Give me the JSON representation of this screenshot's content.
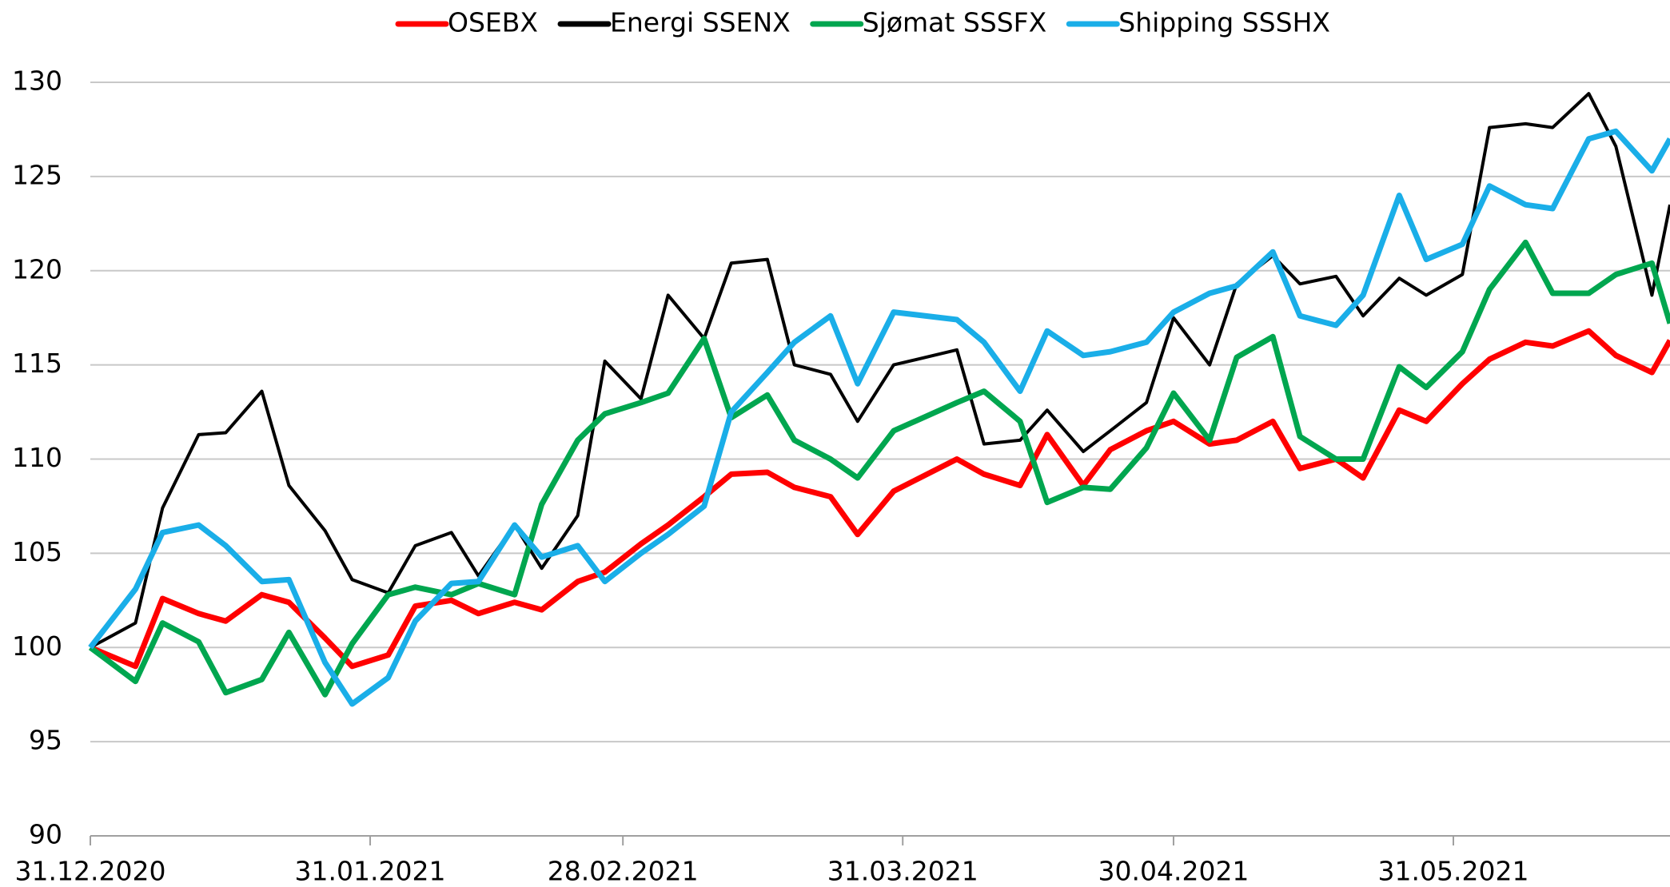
{
  "chart_data": {
    "type": "line",
    "x": [
      "31.12.2020",
      "05.01.2021",
      "08.01.2021",
      "12.01.2021",
      "15.01.2021",
      "19.01.2021",
      "22.01.2021",
      "26.01.2021",
      "29.01.2021",
      "02.02.2021",
      "05.02.2021",
      "09.02.2021",
      "12.02.2021",
      "16.02.2021",
      "19.02.2021",
      "23.02.2021",
      "26.02.2021",
      "02.03.2021",
      "05.03.2021",
      "09.03.2021",
      "12.03.2021",
      "16.03.2021",
      "19.03.2021",
      "23.03.2021",
      "26.03.2021",
      "30.03.2021",
      "06.04.2021",
      "09.04.2021",
      "13.04.2021",
      "16.04.2021",
      "20.04.2021",
      "23.04.2021",
      "27.04.2021",
      "30.04.2021",
      "04.05.2021",
      "07.05.2021",
      "11.05.2021",
      "14.05.2021",
      "18.05.2021",
      "21.05.2021",
      "25.05.2021",
      "28.05.2021",
      "01.06.2021",
      "04.06.2021",
      "08.06.2021",
      "11.06.2021",
      "15.06.2021",
      "18.06.2021",
      "22.06.2021",
      "24.06.2021"
    ],
    "series": [
      {
        "name": "OSEBX",
        "color": "#ff0000",
        "values": [
          100,
          99.0,
          102.6,
          101.8,
          101.4,
          102.8,
          102.4,
          100.5,
          99.0,
          99.6,
          102.2,
          102.5,
          101.8,
          102.4,
          102,
          103.5,
          104,
          105.5,
          106.5,
          108,
          109.2,
          109.3,
          108.5,
          108,
          106,
          108.3,
          110,
          109.2,
          108.6,
          111.3,
          108.6,
          110.5,
          111.5,
          112,
          110.8,
          111,
          112,
          109.5,
          110,
          109,
          112.6,
          112,
          114,
          115.3,
          116.2,
          116,
          116.8,
          115.5,
          114.6,
          116.3
        ]
      },
      {
        "name": "Energi SSENX",
        "color": "#000000",
        "values": [
          100,
          101.3,
          107.4,
          111.3,
          111.4,
          113.6,
          108.6,
          106.2,
          103.6,
          102.9,
          105.4,
          106.1,
          103.8,
          106.5,
          104.2,
          107,
          115.2,
          113.2,
          118.7,
          116.4,
          120.4,
          120.6,
          115,
          114.5,
          112,
          115,
          115.8,
          110.8,
          111,
          112.6,
          110.4,
          111.5,
          113,
          117.5,
          115,
          119.3,
          120.8,
          119.3,
          119.7,
          117.6,
          119.6,
          118.7,
          119.8,
          127.6,
          127.8,
          127.6,
          129.4,
          126.6,
          118.7,
          123.5
        ]
      },
      {
        "name": "Sjømat SSSFX",
        "color": "#00a64f",
        "values": [
          100,
          98.2,
          101.3,
          100.3,
          97.6,
          98.3,
          100.8,
          97.5,
          100.2,
          102.8,
          103.2,
          102.8,
          103.4,
          102.8,
          107.6,
          111,
          112.4,
          113,
          113.5,
          116.4,
          112.2,
          113.4,
          111,
          110,
          109,
          111.5,
          113,
          113.6,
          112,
          107.7,
          108.5,
          108.4,
          110.6,
          113.5,
          111,
          115.4,
          116.5,
          111.2,
          110,
          110,
          114.9,
          113.8,
          115.7,
          119,
          121.5,
          118.8,
          118.8,
          119.8,
          120.4,
          117.2
        ]
      },
      {
        "name": "Shipping SSSHX",
        "color": "#1aaee8",
        "values": [
          100,
          103.1,
          106.1,
          106.5,
          105.4,
          103.5,
          103.6,
          99.2,
          97,
          98.4,
          101.4,
          103.4,
          103.5,
          106.5,
          104.8,
          105.4,
          103.5,
          105,
          106,
          107.5,
          112.5,
          114.6,
          116.2,
          117.6,
          114,
          117.8,
          117.4,
          116.2,
          113.6,
          116.8,
          115.5,
          115.7,
          116.2,
          117.8,
          118.8,
          119.2,
          121,
          117.6,
          117.1,
          118.7,
          124,
          120.6,
          121.4,
          124.5,
          123.5,
          123.3,
          127,
          127.4,
          125.3,
          127
        ]
      }
    ],
    "xlim": [
      "31.12.2020",
      "24.06.2021"
    ],
    "xticks": [
      "31.12.2020",
      "31.01.2021",
      "28.02.2021",
      "31.03.2021",
      "30.04.2021",
      "31.05.2021"
    ],
    "ylim": [
      90,
      130
    ],
    "yticks": [
      90,
      95,
      100,
      105,
      110,
      115,
      120,
      125,
      130
    ],
    "grid": true,
    "legend": "top"
  }
}
